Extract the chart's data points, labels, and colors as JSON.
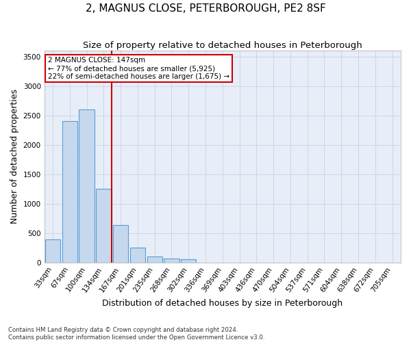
{
  "title": "2, MAGNUS CLOSE, PETERBOROUGH, PE2 8SF",
  "subtitle": "Size of property relative to detached houses in Peterborough",
  "xlabel": "Distribution of detached houses by size in Peterborough",
  "ylabel": "Number of detached properties",
  "footnote1": "Contains HM Land Registry data © Crown copyright and database right 2024.",
  "footnote2": "Contains public sector information licensed under the Open Government Licence v3.0.",
  "categories": [
    "33sqm",
    "67sqm",
    "100sqm",
    "134sqm",
    "167sqm",
    "201sqm",
    "235sqm",
    "268sqm",
    "302sqm",
    "336sqm",
    "369sqm",
    "403sqm",
    "436sqm",
    "470sqm",
    "504sqm",
    "537sqm",
    "571sqm",
    "604sqm",
    "638sqm",
    "672sqm",
    "705sqm"
  ],
  "values": [
    390,
    2400,
    2600,
    1250,
    630,
    250,
    100,
    60,
    50,
    0,
    0,
    0,
    0,
    0,
    0,
    0,
    0,
    0,
    0,
    0,
    0
  ],
  "bar_color": "#c5d8ee",
  "bar_edge_color": "#5b9bd5",
  "vline_x": 3.45,
  "vline_color": "#cc0000",
  "annotation_text": "2 MAGNUS CLOSE: 147sqm\n← 77% of detached houses are smaller (5,925)\n22% of semi-detached houses are larger (1,675) →",
  "annotation_box_color": "#ffffff",
  "annotation_box_edge_color": "#cc0000",
  "ylim": [
    0,
    3600
  ],
  "yticks": [
    0,
    500,
    1000,
    1500,
    2000,
    2500,
    3000,
    3500
  ],
  "bg_color": "#ffffff",
  "grid_color": "#ccd6e8",
  "title_fontsize": 11,
  "subtitle_fontsize": 9.5,
  "axis_label_fontsize": 9,
  "tick_fontsize": 7.5,
  "annotation_fontsize": 7.5
}
